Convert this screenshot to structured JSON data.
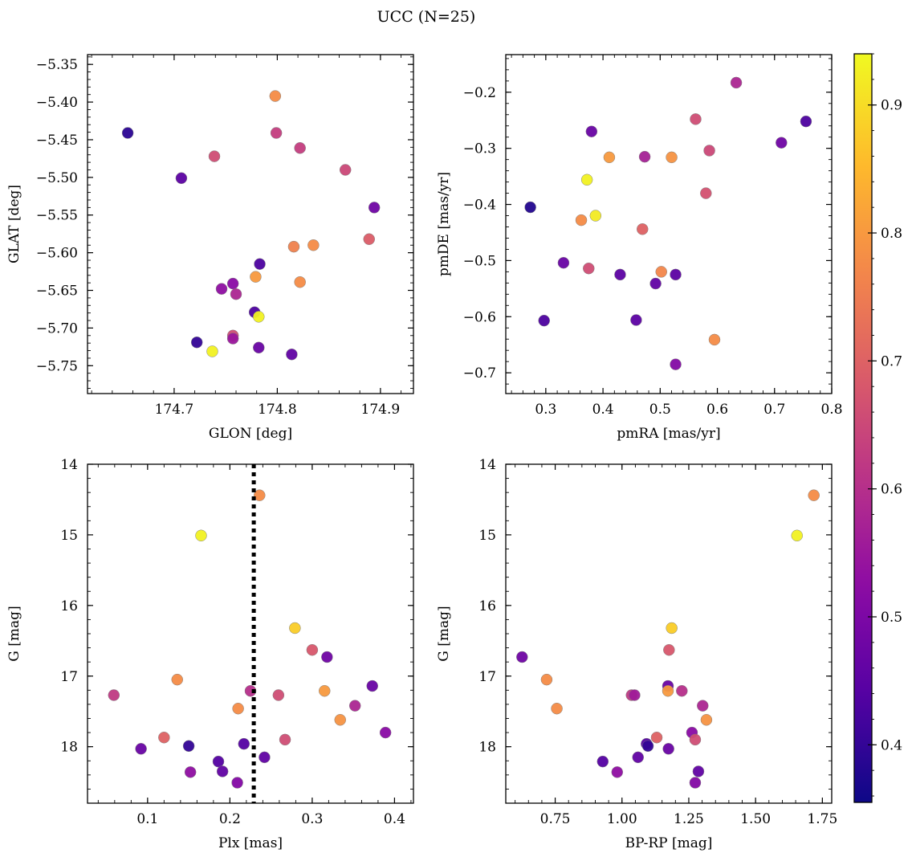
{
  "title": "UCC (N=25)",
  "colorbar": {
    "min": 0.355,
    "max": 0.94,
    "ticks": [
      0.4,
      0.5,
      0.6,
      0.7,
      0.8,
      0.9
    ],
    "tick_labels": [
      "0.4",
      "0.5",
      "0.6",
      "0.7",
      "0.8",
      "0.9"
    ],
    "colormap": "plasma"
  },
  "chart_data": [
    {
      "type": "scatter",
      "xlabel": "GLON [deg]",
      "ylabel": "GLAT [deg]",
      "xlim": [
        174.616,
        174.932
      ],
      "ylim": [
        -5.787,
        -5.337
      ],
      "y_inverted": false,
      "xticks": [
        174.7,
        174.8,
        174.9
      ],
      "xtick_labels": [
        "174.7",
        "174.8",
        "174.9"
      ],
      "yticks": [
        -5.75,
        -5.7,
        -5.65,
        -5.6,
        -5.55,
        -5.5,
        -5.45,
        -5.4,
        -5.35
      ],
      "ytick_labels": [
        "−5.75",
        "−5.70",
        "−5.65",
        "−5.60",
        "−5.55",
        "−5.50",
        "−5.45",
        "−5.40",
        "−5.35"
      ],
      "points": [
        {
          "x": 174.655,
          "y": -5.441,
          "c": 0.39
        },
        {
          "x": 174.707,
          "y": -5.501,
          "c": 0.45
        },
        {
          "x": 174.739,
          "y": -5.472,
          "c": 0.66
        },
        {
          "x": 174.798,
          "y": -5.392,
          "c": 0.78
        },
        {
          "x": 174.799,
          "y": -5.441,
          "c": 0.63
        },
        {
          "x": 174.822,
          "y": -5.461,
          "c": 0.63
        },
        {
          "x": 174.866,
          "y": -5.49,
          "c": 0.65
        },
        {
          "x": 174.894,
          "y": -5.54,
          "c": 0.48
        },
        {
          "x": 174.889,
          "y": -5.582,
          "c": 0.69
        },
        {
          "x": 174.835,
          "y": -5.59,
          "c": 0.78
        },
        {
          "x": 174.816,
          "y": -5.592,
          "c": 0.76
        },
        {
          "x": 174.783,
          "y": -5.615,
          "c": 0.43
        },
        {
          "x": 174.779,
          "y": -5.632,
          "c": 0.8
        },
        {
          "x": 174.822,
          "y": -5.639,
          "c": 0.78
        },
        {
          "x": 174.746,
          "y": -5.648,
          "c": 0.53
        },
        {
          "x": 174.757,
          "y": -5.641,
          "c": 0.52
        },
        {
          "x": 174.76,
          "y": -5.655,
          "c": 0.58
        },
        {
          "x": 174.778,
          "y": -5.679,
          "c": 0.43
        },
        {
          "x": 174.782,
          "y": -5.685,
          "c": 0.93
        },
        {
          "x": 174.757,
          "y": -5.71,
          "c": 0.66
        },
        {
          "x": 174.757,
          "y": -5.714,
          "c": 0.55
        },
        {
          "x": 174.722,
          "y": -5.719,
          "c": 0.4
        },
        {
          "x": 174.737,
          "y": -5.731,
          "c": 0.93
        },
        {
          "x": 174.782,
          "y": -5.726,
          "c": 0.47
        },
        {
          "x": 174.814,
          "y": -5.735,
          "c": 0.46
        }
      ]
    },
    {
      "type": "scatter",
      "xlabel": "pmRA [mas/yr]",
      "ylabel": "pmDE [mas/yr]",
      "xlim": [
        0.23,
        0.8
      ],
      "ylim": [
        -0.737,
        -0.133
      ],
      "y_inverted": false,
      "xticks": [
        0.3,
        0.4,
        0.5,
        0.6,
        0.7,
        0.8
      ],
      "xtick_labels": [
        "0.3",
        "0.4",
        "0.5",
        "0.6",
        "0.7",
        "0.8"
      ],
      "yticks": [
        -0.7,
        -0.6,
        -0.5,
        -0.4,
        -0.3,
        -0.2
      ],
      "ytick_labels": [
        "−0.7",
        "−0.6",
        "−0.5",
        "−0.4",
        "−0.3",
        "−0.2"
      ],
      "points": [
        {
          "x": 0.633,
          "y": -0.183,
          "c": 0.58
        },
        {
          "x": 0.755,
          "y": -0.252,
          "c": 0.43
        },
        {
          "x": 0.562,
          "y": -0.248,
          "c": 0.66
        },
        {
          "x": 0.38,
          "y": -0.27,
          "c": 0.47
        },
        {
          "x": 0.712,
          "y": -0.29,
          "c": 0.48
        },
        {
          "x": 0.586,
          "y": -0.304,
          "c": 0.65
        },
        {
          "x": 0.411,
          "y": -0.316,
          "c": 0.8
        },
        {
          "x": 0.473,
          "y": -0.315,
          "c": 0.57
        },
        {
          "x": 0.52,
          "y": -0.316,
          "c": 0.79
        },
        {
          "x": 0.372,
          "y": -0.356,
          "c": 0.93
        },
        {
          "x": 0.58,
          "y": -0.38,
          "c": 0.67
        },
        {
          "x": 0.273,
          "y": -0.405,
          "c": 0.38
        },
        {
          "x": 0.387,
          "y": -0.42,
          "c": 0.92
        },
        {
          "x": 0.362,
          "y": -0.428,
          "c": 0.78
        },
        {
          "x": 0.469,
          "y": -0.444,
          "c": 0.7
        },
        {
          "x": 0.331,
          "y": -0.504,
          "c": 0.47
        },
        {
          "x": 0.375,
          "y": -0.514,
          "c": 0.66
        },
        {
          "x": 0.502,
          "y": -0.52,
          "c": 0.77
        },
        {
          "x": 0.43,
          "y": -0.525,
          "c": 0.45
        },
        {
          "x": 0.527,
          "y": -0.525,
          "c": 0.45
        },
        {
          "x": 0.492,
          "y": -0.541,
          "c": 0.46
        },
        {
          "x": 0.458,
          "y": -0.606,
          "c": 0.45
        },
        {
          "x": 0.297,
          "y": -0.607,
          "c": 0.43
        },
        {
          "x": 0.595,
          "y": -0.641,
          "c": 0.78
        },
        {
          "x": 0.527,
          "y": -0.685,
          "c": 0.51
        }
      ]
    },
    {
      "type": "scatter",
      "xlabel": "Plx [mas]",
      "ylabel": "G [mag]",
      "xlim": [
        0.027,
        0.423
      ],
      "ylim": [
        14.0,
        18.8
      ],
      "y_inverted": true,
      "xticks": [
        0.1,
        0.2,
        0.3,
        0.4
      ],
      "xtick_labels": [
        "0.1",
        "0.2",
        "0.3",
        "0.4"
      ],
      "yticks": [
        14,
        15,
        16,
        17,
        18
      ],
      "ytick_labels": [
        "14",
        "15",
        "16",
        "17",
        "18"
      ],
      "vline": {
        "x": 0.229,
        "style": "dotted"
      },
      "points": [
        {
          "x": 0.236,
          "y": 14.44,
          "c": 0.78
        },
        {
          "x": 0.165,
          "y": 15.01,
          "c": 0.93
        },
        {
          "x": 0.279,
          "y": 16.32,
          "c": 0.88
        },
        {
          "x": 0.3,
          "y": 16.63,
          "c": 0.68
        },
        {
          "x": 0.318,
          "y": 16.73,
          "c": 0.48
        },
        {
          "x": 0.136,
          "y": 17.05,
          "c": 0.78
        },
        {
          "x": 0.373,
          "y": 17.14,
          "c": 0.47
        },
        {
          "x": 0.225,
          "y": 17.21,
          "c": 0.6
        },
        {
          "x": 0.315,
          "y": 17.21,
          "c": 0.8
        },
        {
          "x": 0.059,
          "y": 17.27,
          "c": 0.62
        },
        {
          "x": 0.259,
          "y": 17.27,
          "c": 0.66
        },
        {
          "x": 0.352,
          "y": 17.42,
          "c": 0.58
        },
        {
          "x": 0.21,
          "y": 17.46,
          "c": 0.78
        },
        {
          "x": 0.334,
          "y": 17.62,
          "c": 0.79
        },
        {
          "x": 0.389,
          "y": 17.8,
          "c": 0.52
        },
        {
          "x": 0.12,
          "y": 17.87,
          "c": 0.7
        },
        {
          "x": 0.267,
          "y": 17.9,
          "c": 0.66
        },
        {
          "x": 0.217,
          "y": 17.96,
          "c": 0.44
        },
        {
          "x": 0.15,
          "y": 17.99,
          "c": 0.4
        },
        {
          "x": 0.092,
          "y": 18.03,
          "c": 0.47
        },
        {
          "x": 0.242,
          "y": 18.15,
          "c": 0.46
        },
        {
          "x": 0.186,
          "y": 18.21,
          "c": 0.44
        },
        {
          "x": 0.152,
          "y": 18.36,
          "c": 0.53
        },
        {
          "x": 0.191,
          "y": 18.35,
          "c": 0.46
        },
        {
          "x": 0.209,
          "y": 18.51,
          "c": 0.51
        }
      ]
    },
    {
      "type": "scatter",
      "xlabel": "BP-RP [mag]",
      "ylabel": "G [mag]",
      "xlim": [
        0.565,
        1.785
      ],
      "ylim": [
        14.0,
        18.8
      ],
      "y_inverted": true,
      "xticks": [
        0.75,
        1.0,
        1.25,
        1.5,
        1.75
      ],
      "xtick_labels": [
        "0.75",
        "1.00",
        "1.25",
        "1.50",
        "1.75"
      ],
      "yticks": [
        14,
        15,
        16,
        17,
        18
      ],
      "ytick_labels": [
        "14",
        "15",
        "16",
        "17",
        "18"
      ],
      "points": [
        {
          "x": 1.718,
          "y": 14.44,
          "c": 0.78
        },
        {
          "x": 1.655,
          "y": 15.01,
          "c": 0.93
        },
        {
          "x": 1.186,
          "y": 16.32,
          "c": 0.88
        },
        {
          "x": 1.176,
          "y": 16.63,
          "c": 0.68
        },
        {
          "x": 0.626,
          "y": 16.73,
          "c": 0.48
        },
        {
          "x": 0.718,
          "y": 17.05,
          "c": 0.78
        },
        {
          "x": 1.172,
          "y": 17.14,
          "c": 0.47
        },
        {
          "x": 1.224,
          "y": 17.21,
          "c": 0.6
        },
        {
          "x": 1.172,
          "y": 17.21,
          "c": 0.8
        },
        {
          "x": 1.036,
          "y": 17.27,
          "c": 0.62
        },
        {
          "x": 1.047,
          "y": 17.27,
          "c": 0.56
        },
        {
          "x": 1.302,
          "y": 17.42,
          "c": 0.58
        },
        {
          "x": 0.756,
          "y": 17.46,
          "c": 0.78
        },
        {
          "x": 1.316,
          "y": 17.62,
          "c": 0.79
        },
        {
          "x": 1.262,
          "y": 17.8,
          "c": 0.52
        },
        {
          "x": 1.13,
          "y": 17.87,
          "c": 0.7
        },
        {
          "x": 1.274,
          "y": 17.9,
          "c": 0.66
        },
        {
          "x": 1.092,
          "y": 17.96,
          "c": 0.44
        },
        {
          "x": 1.097,
          "y": 17.99,
          "c": 0.4
        },
        {
          "x": 1.174,
          "y": 18.03,
          "c": 0.47
        },
        {
          "x": 1.06,
          "y": 18.15,
          "c": 0.46
        },
        {
          "x": 0.928,
          "y": 18.21,
          "c": 0.44
        },
        {
          "x": 0.982,
          "y": 18.36,
          "c": 0.53
        },
        {
          "x": 1.286,
          "y": 18.35,
          "c": 0.46
        },
        {
          "x": 1.274,
          "y": 18.51,
          "c": 0.51
        }
      ]
    }
  ]
}
